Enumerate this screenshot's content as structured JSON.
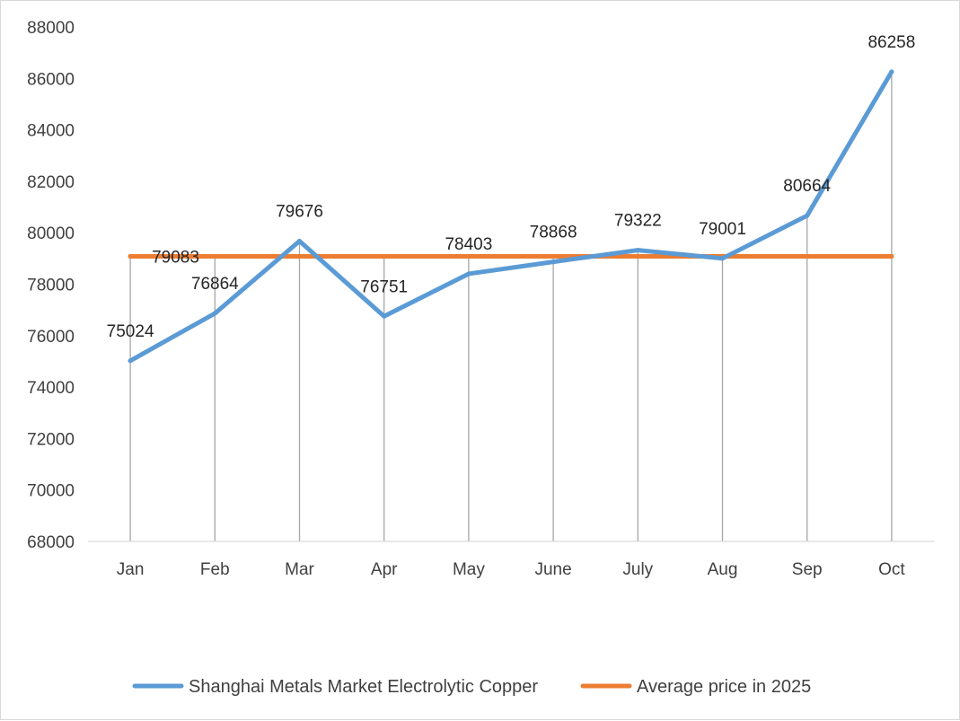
{
  "chart_data": {
    "type": "line",
    "categories": [
      "Jan",
      "Feb",
      "Mar",
      "Apr",
      "May",
      "June",
      "July",
      "Aug",
      "Sep",
      "Oct"
    ],
    "series": [
      {
        "name": "Shanghai Metals Market Electrolytic Copper",
        "values": [
          75024,
          76864,
          79676,
          76751,
          78403,
          78868,
          79322,
          79001,
          80664,
          86258
        ],
        "color": "#5b9bd5"
      },
      {
        "name": "Average price in 2025",
        "values": [
          79083,
          79083,
          79083,
          79083,
          79083,
          79083,
          79083,
          79083,
          79083,
          79083
        ],
        "color": "#ed7d31"
      }
    ],
    "data_labels": {
      "copper": [
        "75024",
        "76864",
        "79676",
        "76751",
        "78403",
        "78868",
        "79322",
        "79001",
        "80664",
        "86258"
      ],
      "average": "79083"
    },
    "yticks": [
      "68000",
      "70000",
      "72000",
      "74000",
      "76000",
      "78000",
      "80000",
      "82000",
      "84000",
      "86000",
      "88000"
    ],
    "ylim": [
      68000,
      88000
    ],
    "title": "",
    "xlabel": "",
    "ylabel": "",
    "grid": false,
    "drop_lines": true,
    "legend": "bottom"
  }
}
